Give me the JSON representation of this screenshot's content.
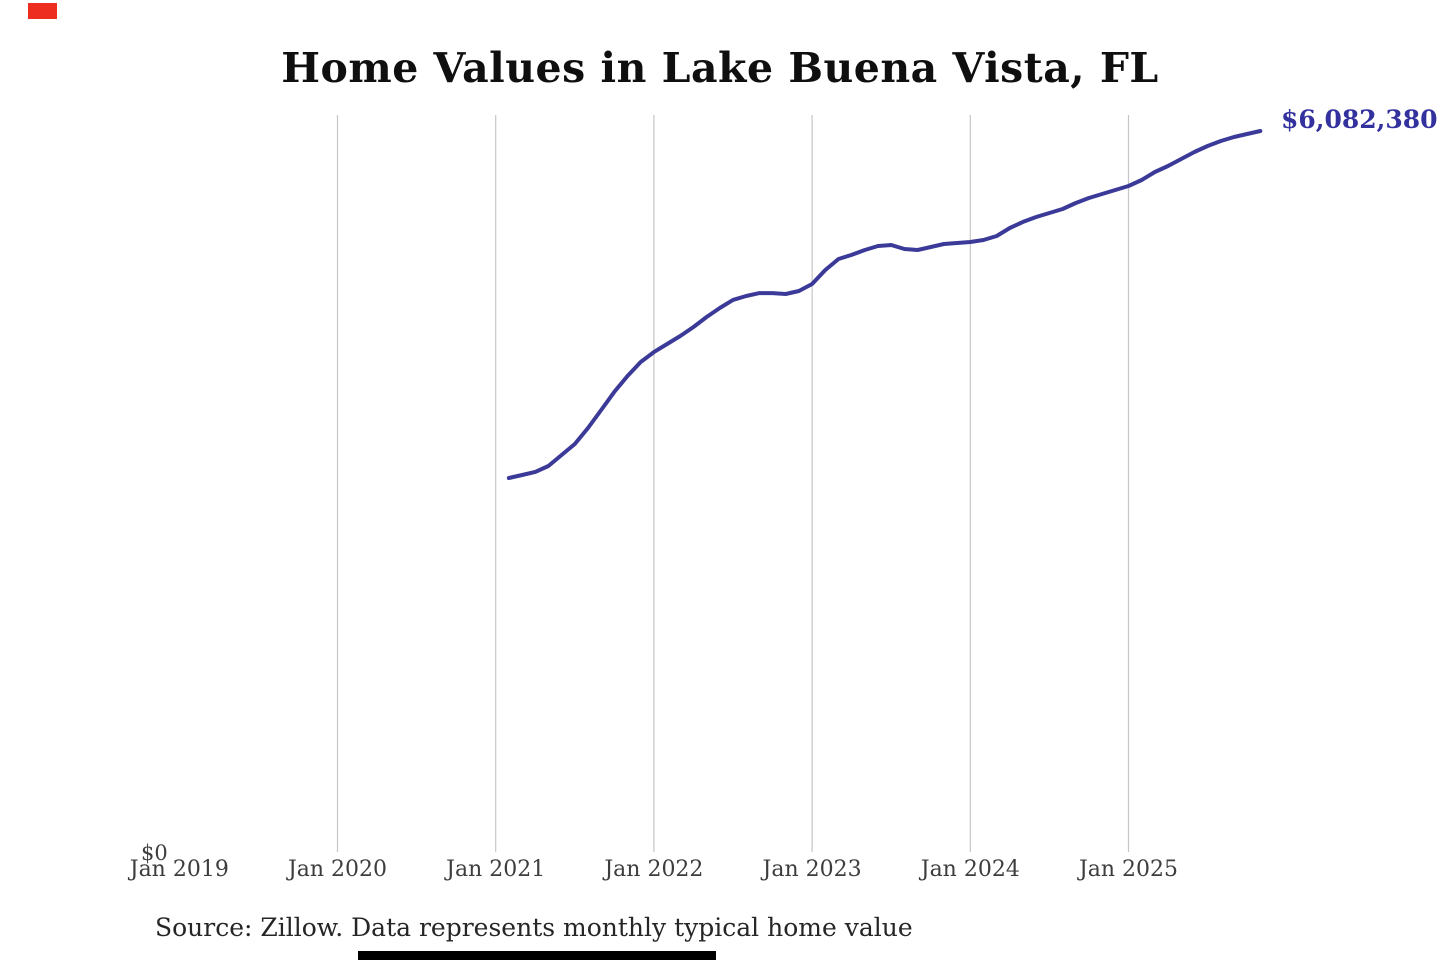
{
  "chart": {
    "title": "Home Values in Lake Buena Vista, FL",
    "last_value_label": "$6,082,380",
    "y_axis": {
      "zero_label": "$0"
    },
    "x_ticks": [
      "Jan 2019",
      "Jan 2020",
      "Jan 2021",
      "Jan 2022",
      "Jan 2023",
      "Jan 2024",
      "Jan 2025"
    ]
  },
  "chart_data": {
    "type": "line",
    "title": "Home Values in Lake Buena Vista, FL",
    "series_name": "Monthly typical home value",
    "xlabel": "",
    "ylabel": "",
    "ylim": [
      0,
      6500000
    ],
    "grid": "vertical-gridlines-only",
    "legend": "none",
    "x_tick_labels": [
      "Jan 2019",
      "Jan 2020",
      "Jan 2021",
      "Jan 2022",
      "Jan 2023",
      "Jan 2024",
      "Jan 2025"
    ],
    "x": [
      "2021-02",
      "2021-03",
      "2021-04",
      "2021-05",
      "2021-06",
      "2021-07",
      "2021-08",
      "2021-09",
      "2021-10",
      "2021-11",
      "2021-12",
      "2022-01",
      "2022-02",
      "2022-03",
      "2022-04",
      "2022-05",
      "2022-06",
      "2022-07",
      "2022-08",
      "2022-09",
      "2022-10",
      "2022-11",
      "2022-12",
      "2023-01",
      "2023-02",
      "2023-03",
      "2023-04",
      "2023-05",
      "2023-06",
      "2023-07",
      "2023-08",
      "2023-09",
      "2023-10",
      "2023-11",
      "2023-12",
      "2024-01",
      "2024-02",
      "2024-03",
      "2024-04",
      "2024-05",
      "2024-06",
      "2024-07",
      "2024-08",
      "2024-09",
      "2024-10",
      "2024-11",
      "2024-12",
      "2025-01",
      "2025-02",
      "2025-03",
      "2025-04",
      "2025-05",
      "2025-06",
      "2025-07",
      "2025-08",
      "2025-09",
      "2025-10",
      "2025-11"
    ],
    "values": [
      3159000,
      3184000,
      3210000,
      3260000,
      3353000,
      3445000,
      3580000,
      3732000,
      3884000,
      4018000,
      4136000,
      4220000,
      4288000,
      4355000,
      4431000,
      4515000,
      4591000,
      4659000,
      4692000,
      4717000,
      4717000,
      4709000,
      4734000,
      4793000,
      4911000,
      5004000,
      5038000,
      5080000,
      5113000,
      5122000,
      5088000,
      5080000,
      5105000,
      5130000,
      5139000,
      5147000,
      5164000,
      5198000,
      5265000,
      5316000,
      5358000,
      5391000,
      5425000,
      5476000,
      5518000,
      5551000,
      5585000,
      5619000,
      5669000,
      5737000,
      5787000,
      5846000,
      5905000,
      5956000,
      5998000,
      6032000,
      6057000,
      6082380
    ],
    "last_point_label": "$6,082,380",
    "line_color": "#3b3a98"
  },
  "footer": {
    "source": "Source: Zillow. Data represents monthly typical home value"
  },
  "colors": {
    "line": "#3b3a98",
    "value_label": "#32319e",
    "grid": "#c6c6c6",
    "axis_text": "#3d3d3d",
    "title_text": "#0f0f0f",
    "source_text": "#262626",
    "corner_marker": "#ec2d20",
    "bottom_bar": "#000000"
  }
}
